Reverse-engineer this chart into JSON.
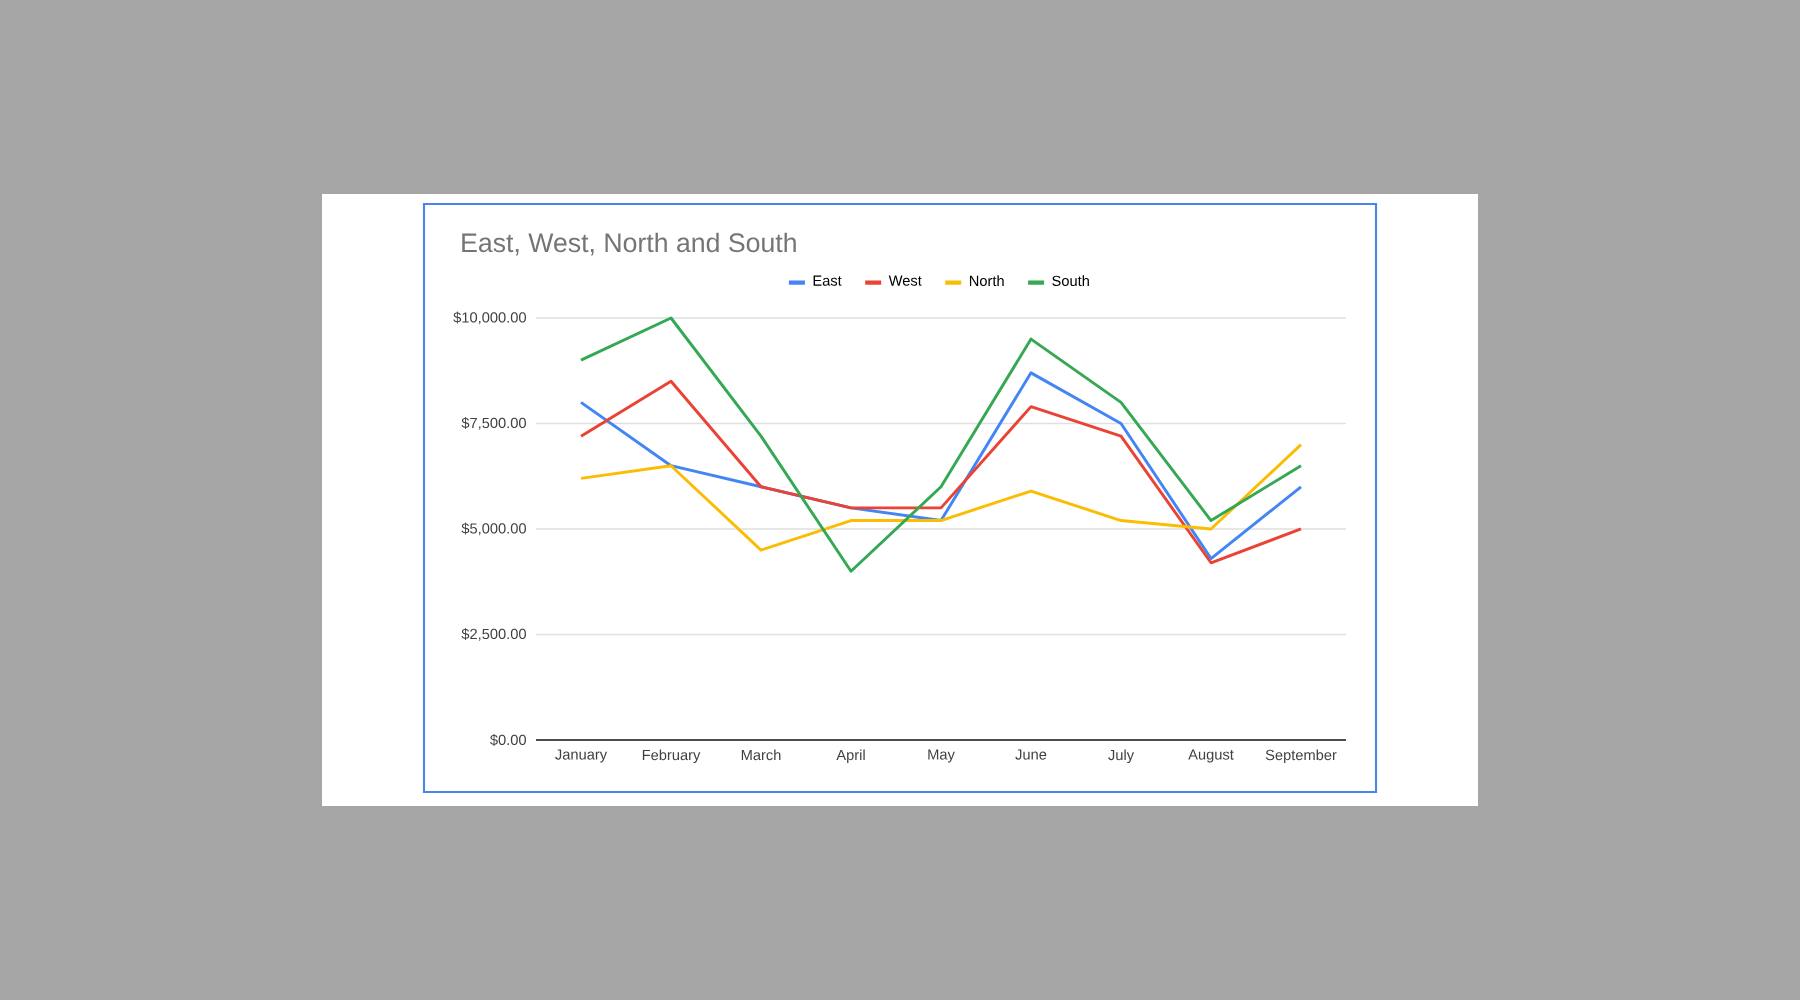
{
  "chart_data": {
    "type": "line",
    "title": "East, West, North and South",
    "categories": [
      "January",
      "February",
      "March",
      "April",
      "May",
      "June",
      "July",
      "August",
      "September"
    ],
    "series": [
      {
        "name": "East",
        "color": "#4285f4",
        "values": [
          8000,
          6500,
          6000,
          5500,
          5200,
          8700,
          7500,
          4300,
          6000
        ]
      },
      {
        "name": "West",
        "color": "#ea4335",
        "values": [
          7200,
          8500,
          6000,
          5500,
          5500,
          7900,
          7200,
          4200,
          5000
        ]
      },
      {
        "name": "North",
        "color": "#fbbc04",
        "values": [
          6200,
          6500,
          4500,
          5200,
          5200,
          5900,
          5200,
          5000,
          7000
        ]
      },
      {
        "name": "South",
        "color": "#34a853",
        "values": [
          9000,
          10000,
          7200,
          4000,
          6000,
          9500,
          8000,
          5200,
          6500
        ]
      }
    ],
    "ylim": [
      0,
      10000
    ],
    "yticks": [
      {
        "value": 0,
        "label": "$0.00"
      },
      {
        "value": 2500,
        "label": "$2,500.00"
      },
      {
        "value": 5000,
        "label": "$5,000.00"
      },
      {
        "value": 7500,
        "label": "$7,500.00"
      },
      {
        "value": 10000,
        "label": "$10,000.00"
      }
    ],
    "grid": "y",
    "legend": "top",
    "marker": "none",
    "line_style": "solid"
  }
}
